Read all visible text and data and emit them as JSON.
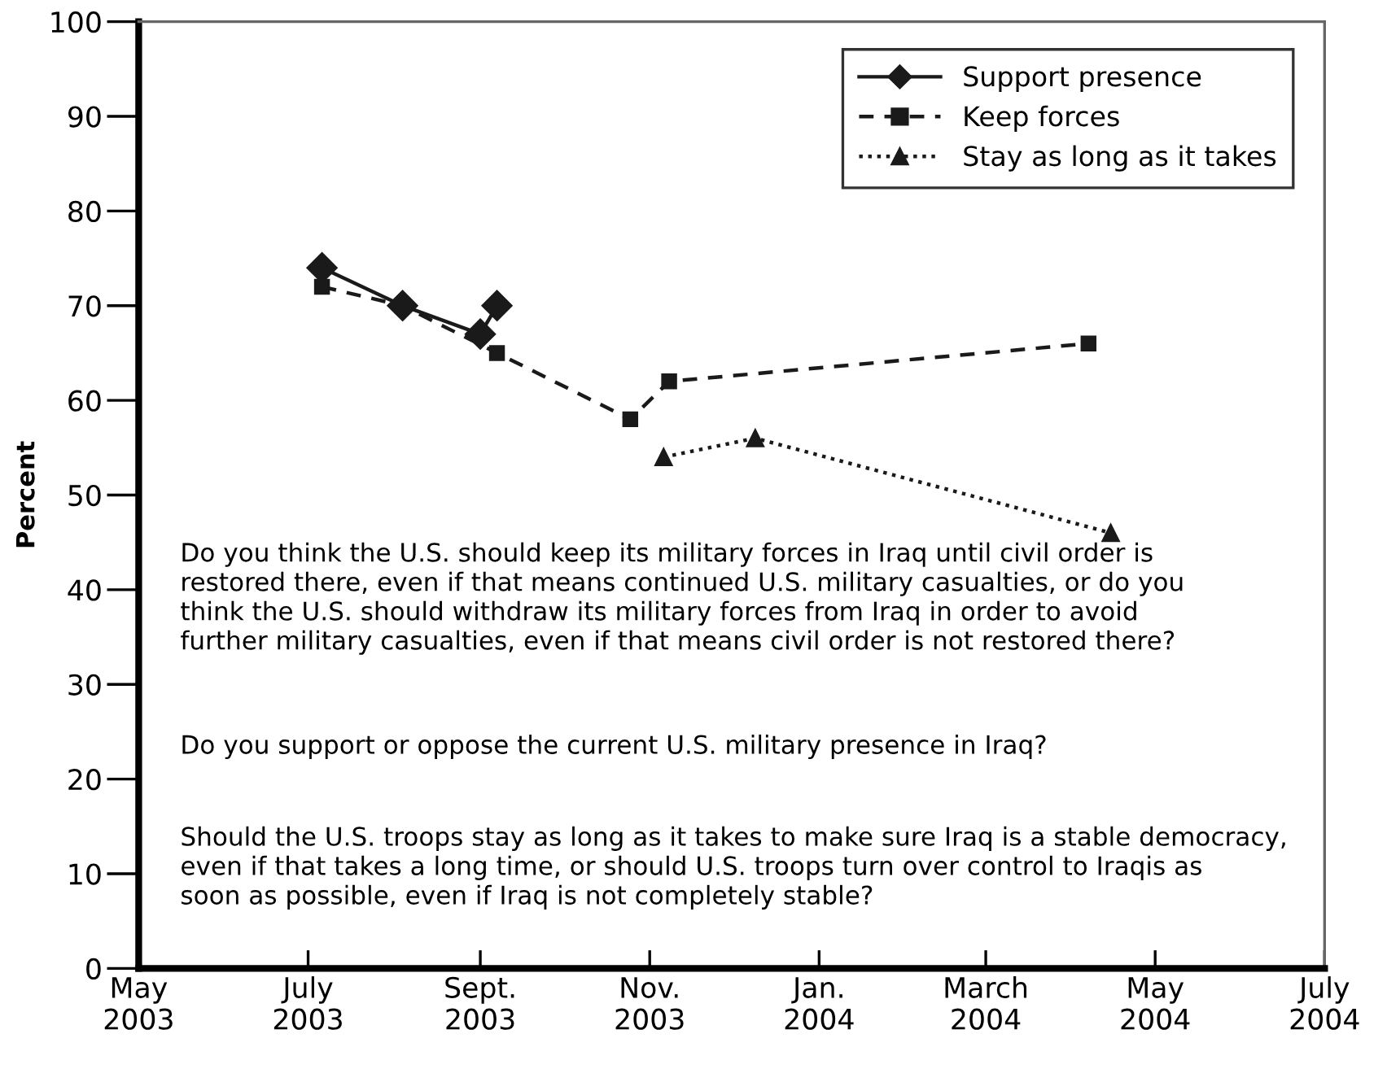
{
  "chart_data": {
    "type": "line",
    "ylabel": "Percent",
    "xlim": [
      "2003-05",
      "2004-07"
    ],
    "xticks": [
      {
        "value": "2003-05",
        "label": "May\n2003"
      },
      {
        "value": "2003-07",
        "label": "July\n2003"
      },
      {
        "value": "2003-09",
        "label": "Sept.\n2003"
      },
      {
        "value": "2003-11",
        "label": "Nov.\n2003"
      },
      {
        "value": "2004-01",
        "label": "Jan.\n2004"
      },
      {
        "value": "2004-03",
        "label": "March\n2004"
      },
      {
        "value": "2004-05",
        "label": "May\n2004"
      },
      {
        "value": "2004-07",
        "label": "July\n2004"
      }
    ],
    "ylim": [
      0,
      100
    ],
    "yticks": [
      0,
      10,
      20,
      30,
      40,
      50,
      60,
      70,
      80,
      90,
      100
    ],
    "grid": false,
    "legend": "top right",
    "series": [
      {
        "name": "Support presence",
        "color": "#1a1a1a",
        "marker": "diamond",
        "line_style": "solid",
        "x": [
          "2003-07-06",
          "2003-08-04",
          "2003-09-01",
          "2003-09-07"
        ],
        "values": [
          74,
          70,
          67,
          70
        ]
      },
      {
        "name": "Keep forces",
        "color": "#1a1a1a",
        "marker": "square",
        "line_style": "dashed",
        "x": [
          "2003-07-06",
          "2003-08-04",
          "2003-09-07",
          "2003-10-25",
          "2003-11-08",
          "2004-04-07"
        ],
        "values": [
          72,
          70,
          65,
          58,
          62,
          66
        ]
      },
      {
        "name": "Stay as long as it takes",
        "color": "#1a1a1a",
        "marker": "triangle",
        "line_style": "dotted",
        "x": [
          "2003-11-06",
          "2003-12-09",
          "2004-04-15"
        ],
        "values": [
          54,
          56,
          46
        ]
      }
    ],
    "annotations": [
      "Do you think the U.S. should keep its military forces in Iraq until civil order is\nrestored there, even if that means continued U.S. military casualties, or do you\nthink the U.S. should withdraw its military forces from Iraq in order to avoid\nfurther military casualties, even if that means civil order is not restored there?",
      "Do you support or oppose the current U.S. military presence in Iraq?",
      "Should the U.S. troops stay as long as it takes to make sure Iraq is a stable democracy,\neven if that takes a long time, or should U.S. troops turn over control to Iraqis as\nsoon as possible, even if Iraq is not completely stable?"
    ]
  }
}
